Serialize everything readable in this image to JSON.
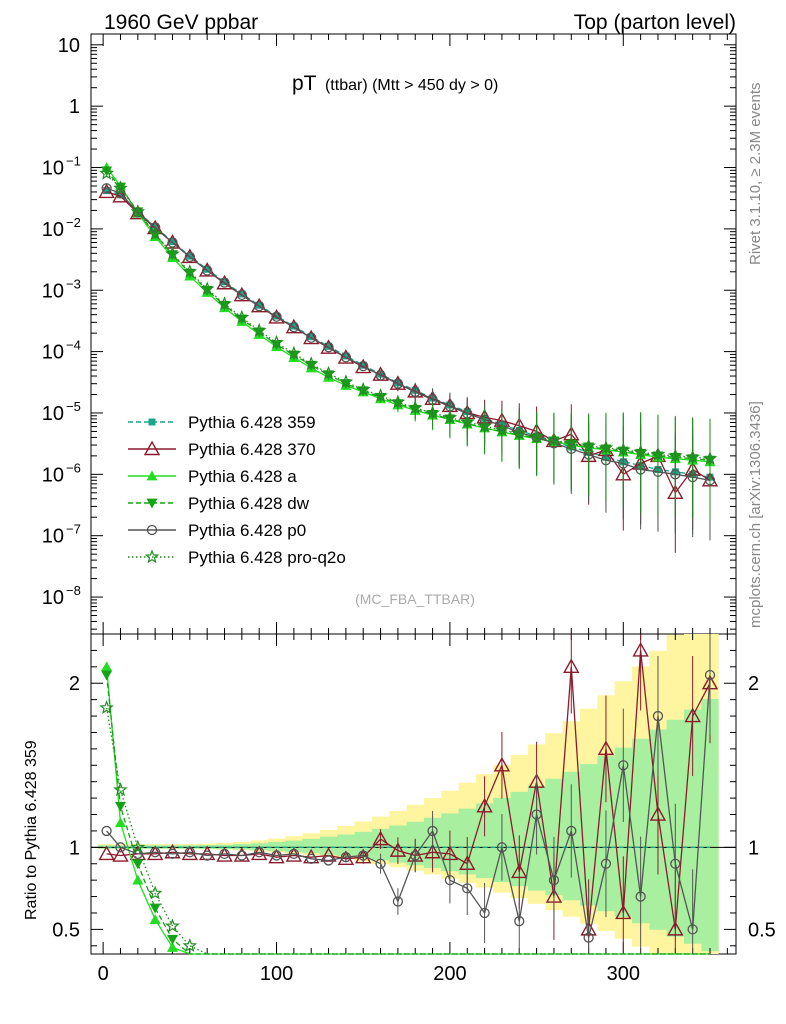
{
  "header": {
    "left": "1960 GeV ppbar",
    "right": "Top (parton level)"
  },
  "side": {
    "rivet": "Rivet 3.1.10, ≥ 2.3M events",
    "mcplots": "mcplots.cern.ch [arXiv:1306.3436]"
  },
  "chart_data": {
    "type": "line",
    "title_main": "pT",
    "title_sub": "(ttbar) (Mtt > 450 dy > 0)",
    "watermark": "(MC_FBA_TTBAR)",
    "ratio_ylabel": "Ratio to Pythia 6.428 359",
    "log_scale_main": true,
    "ylim_main": [
      2.5e-09,
      15
    ],
    "ylim_ratio": [
      0.35,
      2.3
    ],
    "xlim": [
      -7,
      365
    ],
    "x_ticks": [
      0,
      100,
      200,
      300
    ],
    "main_ytick_labels": [
      {
        "v": 10,
        "t": "10"
      },
      {
        "v": 1,
        "t": "1"
      },
      {
        "v": 0.1,
        "t": "10",
        "e": "−1"
      },
      {
        "v": 0.01,
        "t": "10",
        "e": "−2"
      },
      {
        "v": 0.001,
        "t": "10",
        "e": "−3"
      },
      {
        "v": 0.0001,
        "t": "10",
        "e": "−4"
      },
      {
        "v": 1e-05,
        "t": "10",
        "e": "−5"
      },
      {
        "v": 1e-06,
        "t": "10",
        "e": "−6"
      },
      {
        "v": 1e-07,
        "t": "10",
        "e": "−7"
      },
      {
        "v": 1e-08,
        "t": "10",
        "e": "−8"
      }
    ],
    "ratio_ytick_labels": [
      {
        "v": 0.5,
        "t": "0.5"
      },
      {
        "v": 1,
        "t": "1"
      },
      {
        "v": 2,
        "t": "2"
      }
    ],
    "legend_position": "lower-left",
    "series": [
      {
        "name": "Pythia 6.428 359",
        "color": "#1aa68a",
        "dash": "5,3",
        "marker": "square",
        "x": [
          2,
          10,
          20,
          30,
          40,
          50,
          60,
          70,
          80,
          90,
          100,
          110,
          120,
          130,
          140,
          150,
          160,
          170,
          180,
          190,
          200,
          210,
          220,
          230,
          240,
          250,
          260,
          270,
          280,
          290,
          300,
          310,
          320,
          330,
          340,
          350
        ],
        "y": [
          0.042,
          0.036,
          0.019,
          0.0108,
          0.0062,
          0.0036,
          0.0022,
          0.00137,
          0.00087,
          0.00057,
          0.00038,
          0.00026,
          0.000175,
          0.000122,
          8.5e-05,
          6e-05,
          4.3e-05,
          3.1e-05,
          2.35e-05,
          1.75e-05,
          1.35e-05,
          1.05e-05,
          8.2e-06,
          6.5e-06,
          5.2e-06,
          4.2e-06,
          3.4e-06,
          2.8e-06,
          2.3e-06,
          1.9e-06,
          1.6e-06,
          1.4e-06,
          1.2e-06,
          1.1e-06,
          1e-06,
          9e-07
        ],
        "ratio": [
          1.0,
          1.0,
          1.0,
          1.0,
          1.0,
          1.0,
          1.0,
          1.0,
          1.0,
          1.0,
          1.0,
          1.0,
          1.0,
          1.0,
          1.0,
          1.0,
          1.0,
          1.0,
          1.0,
          1.0,
          1.0,
          1.0,
          1.0,
          1.0,
          1.0,
          1.0,
          1.0,
          1.0,
          1.0,
          1.0,
          1.0,
          1.0,
          1.0,
          1.0,
          1.0,
          1.0
        ]
      },
      {
        "name": "Pythia 6.428 370",
        "color": "#8b1a2b",
        "dash": "",
        "marker": "triangle-open",
        "x": [
          2,
          10,
          20,
          30,
          40,
          50,
          60,
          70,
          80,
          90,
          100,
          110,
          120,
          130,
          140,
          150,
          160,
          170,
          180,
          190,
          200,
          210,
          220,
          230,
          240,
          250,
          260,
          270,
          280,
          290,
          300,
          310,
          320,
          330,
          340,
          350
        ],
        "y": [
          0.04,
          0.034,
          0.018,
          0.0103,
          0.006,
          0.0035,
          0.0021,
          0.0013,
          0.00083,
          0.00055,
          0.00036,
          0.00025,
          0.000166,
          0.000116,
          8e-05,
          5.6e-05,
          4.2e-05,
          3e-05,
          2.25e-05,
          1.7e-05,
          1.3e-05,
          1e-05,
          8.5e-06,
          7.5e-06,
          6.2e-06,
          5e-06,
          3.5e-06,
          4.5e-06,
          2e-06,
          2.5e-06,
          1e-06,
          1.5e-06,
          2e-06,
          5e-07,
          1.2e-06,
          8e-07
        ],
        "ratio": [
          0.96,
          0.95,
          0.96,
          0.96,
          0.97,
          0.96,
          0.96,
          0.95,
          0.95,
          0.96,
          0.94,
          0.95,
          0.94,
          0.95,
          0.93,
          0.94,
          1.05,
          0.98,
          0.95,
          0.97,
          0.96,
          0.9,
          1.25,
          1.5,
          0.85,
          1.4,
          0.7,
          2.1,
          0.5,
          1.6,
          0.6,
          2.2,
          1.2,
          0.5,
          1.8,
          2.0
        ]
      },
      {
        "name": "Pythia 6.428 a",
        "color": "#22dd22",
        "dash": "",
        "marker": "triangle",
        "x": [
          2,
          10,
          20,
          30,
          40,
          50,
          60,
          70,
          80,
          90,
          100,
          110,
          120,
          130,
          140,
          150,
          160,
          170,
          180,
          190,
          200,
          210,
          220,
          230,
          240,
          250,
          260,
          270,
          280,
          290,
          300,
          310,
          320,
          330,
          340,
          350
        ],
        "y": [
          0.1,
          0.05,
          0.018,
          0.0075,
          0.0034,
          0.0017,
          0.00092,
          0.00052,
          0.00031,
          0.00019,
          0.00012,
          8e-05,
          5.4e-05,
          3.8e-05,
          2.8e-05,
          2.2e-05,
          1.7e-05,
          1.35e-05,
          1.1e-05,
          9.2e-06,
          7.8e-06,
          6.6e-06,
          5.7e-06,
          4.9e-06,
          4.3e-06,
          3.8e-06,
          3.4e-06,
          3e-06,
          2.7e-06,
          2.5e-06,
          2.3e-06,
          2.1e-06,
          1.9e-06,
          1.8e-06,
          1.7e-06,
          1.6e-06
        ],
        "ratio": [
          2.1,
          1.15,
          0.8,
          0.56,
          0.39,
          0.3,
          0.25,
          0.22,
          0.2,
          0.19,
          0.18,
          0.17,
          0.16,
          0.15,
          0.15,
          0.14,
          0.14,
          0.13,
          0.13,
          0.12,
          0.12,
          0.12,
          0.12,
          0.11,
          0.11,
          0.11,
          0.11,
          0.11,
          0.11,
          0.11,
          0.11,
          0.11,
          0.11,
          0.11,
          0.11,
          0.11
        ]
      },
      {
        "name": "Pythia 6.428 dw",
        "color": "#14a314",
        "dash": "5,3",
        "marker": "triangle-down",
        "x": [
          2,
          10,
          20,
          30,
          40,
          50,
          60,
          70,
          80,
          90,
          100,
          110,
          120,
          130,
          140,
          150,
          160,
          170,
          180,
          190,
          200,
          210,
          220,
          230,
          240,
          250,
          260,
          270,
          280,
          290,
          300,
          310,
          320,
          330,
          340,
          350
        ],
        "y": [
          0.088,
          0.048,
          0.019,
          0.0082,
          0.0038,
          0.0019,
          0.001,
          0.00057,
          0.00034,
          0.00021,
          0.00013,
          8.8e-05,
          6e-05,
          4.2e-05,
          3e-05,
          2.3e-05,
          1.8e-05,
          1.42e-05,
          1.15e-05,
          9.5e-06,
          8e-06,
          6.7e-06,
          5.7e-06,
          5e-06,
          4.4e-06,
          3.9e-06,
          3.5e-06,
          3.1e-06,
          2.8e-06,
          2.6e-06,
          2.4e-06,
          2.2e-06,
          2e-06,
          1.9e-06,
          1.8e-06,
          1.7e-06
        ],
        "ratio": [
          2.05,
          1.25,
          0.9,
          0.63,
          0.44,
          0.34,
          0.28,
          0.24,
          0.22,
          0.2,
          0.19,
          0.18,
          0.17,
          0.16,
          0.16,
          0.15,
          0.15,
          0.14,
          0.14,
          0.13,
          0.13,
          0.13,
          0.13,
          0.12,
          0.12,
          0.12,
          0.12,
          0.12,
          0.12,
          0.12,
          0.12,
          0.12,
          0.12,
          0.12,
          0.12,
          0.12
        ]
      },
      {
        "name": "Pythia 6.428 p0",
        "color": "#555555",
        "dash": "",
        "marker": "circle-open",
        "x": [
          2,
          10,
          20,
          30,
          40,
          50,
          60,
          70,
          80,
          90,
          100,
          110,
          120,
          130,
          140,
          150,
          160,
          170,
          180,
          190,
          200,
          210,
          220,
          230,
          240,
          250,
          260,
          270,
          280,
          290,
          300,
          310,
          320,
          330,
          340,
          350
        ],
        "y": [
          0.046,
          0.038,
          0.0185,
          0.0106,
          0.006,
          0.0035,
          0.0021,
          0.00133,
          0.00084,
          0.00055,
          0.00037,
          0.00025,
          0.000168,
          0.000118,
          8.1e-05,
          5.8e-05,
          4.1e-05,
          3e-05,
          2.2e-05,
          1.65e-05,
          1.28e-05,
          9.8e-06,
          7.8e-06,
          6.2e-06,
          4.8e-06,
          4e-06,
          3.2e-06,
          2.6e-06,
          2.1e-06,
          1.7e-06,
          1.5e-06,
          1.2e-06,
          1.1e-06,
          1e-06,
          9e-07,
          8e-07
        ],
        "ratio": [
          1.1,
          1.0,
          0.96,
          0.97,
          0.96,
          0.97,
          0.95,
          0.96,
          0.95,
          0.97,
          0.95,
          0.96,
          0.93,
          0.92,
          0.94,
          0.95,
          0.9,
          0.67,
          0.95,
          1.1,
          0.8,
          0.75,
          0.6,
          1.0,
          0.55,
          1.2,
          0.8,
          1.1,
          0.45,
          0.9,
          1.5,
          0.7,
          1.8,
          0.9,
          0.5,
          2.05
        ]
      },
      {
        "name": "Pythia 6.428 pro-q2o",
        "color": "#228b22",
        "dash": "1.5,2.5",
        "marker": "star-open",
        "x": [
          2,
          10,
          20,
          30,
          40,
          50,
          60,
          70,
          80,
          90,
          100,
          110,
          120,
          130,
          140,
          150,
          160,
          170,
          180,
          190,
          200,
          210,
          220,
          230,
          240,
          250,
          260,
          270,
          280,
          290,
          300,
          310,
          320,
          330,
          340,
          350
        ],
        "y": [
          0.08,
          0.046,
          0.019,
          0.0083,
          0.0039,
          0.002,
          0.00105,
          0.0006,
          0.00036,
          0.00022,
          0.00014,
          9.3e-05,
          6.3e-05,
          4.4e-05,
          3.2e-05,
          2.4e-05,
          1.9e-05,
          1.5e-05,
          1.21e-05,
          1e-05,
          8.4e-06,
          7.1e-06,
          6.1e-06,
          5.3e-06,
          4.6e-06,
          4.1e-06,
          3.6e-06,
          3.2e-06,
          2.9e-06,
          2.7e-06,
          2.5e-06,
          2.3e-06,
          2.1e-06,
          2e-06,
          1.9e-06,
          1.8e-06
        ],
        "ratio": [
          1.85,
          1.35,
          1.0,
          0.72,
          0.52,
          0.4,
          0.33,
          0.28,
          0.25,
          0.23,
          0.21,
          0.2,
          0.19,
          0.18,
          0.17,
          0.17,
          0.16,
          0.16,
          0.15,
          0.15,
          0.15,
          0.14,
          0.14,
          0.14,
          0.14,
          0.13,
          0.13,
          0.13,
          0.13,
          0.13,
          0.13,
          0.13,
          0.13,
          0.13,
          0.13,
          0.13
        ]
      }
    ]
  }
}
